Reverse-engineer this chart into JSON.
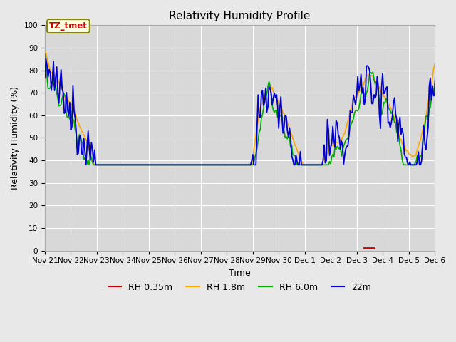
{
  "title": "Relativity Humidity Profile",
  "ylabel": "Relativity Humidity (%)",
  "xlabel": "Time",
  "ylim": [
    0,
    100
  ],
  "yticks": [
    0,
    10,
    20,
    30,
    40,
    50,
    60,
    70,
    80,
    90,
    100
  ],
  "colors": {
    "RH 0.35m": "#cc0000",
    "RH 1.8m": "#ffa500",
    "RH 6.0m": "#00aa00",
    "22m": "#0000cc"
  },
  "legend_labels": [
    "RH 0.35m",
    "RH 1.8m",
    "RH 6.0m",
    "22m"
  ],
  "bg_color": "#e8e8e8",
  "plot_bg_color": "#d8d8d8",
  "annotation_text": "TZ_tmet",
  "annotation_color": "#cc0000",
  "annotation_bg": "#ffffe0",
  "annotation_border": "#888800",
  "x_start": 0,
  "x_end": 360,
  "x_tick_labels": [
    "Nov 21",
    "Nov 22",
    "Nov 23",
    "Nov 24",
    "Nov 25",
    "Nov 26",
    "Nov 27",
    "Nov 28",
    "Nov 29",
    "Nov 30",
    "Dec 1",
    "Dec 2",
    "Dec 3",
    "Dec 4",
    "Dec 5",
    "Dec 6"
  ],
  "x_tick_positions": [
    0,
    24,
    48,
    72,
    96,
    120,
    144,
    168,
    192,
    216,
    240,
    264,
    288,
    312,
    336,
    360
  ]
}
